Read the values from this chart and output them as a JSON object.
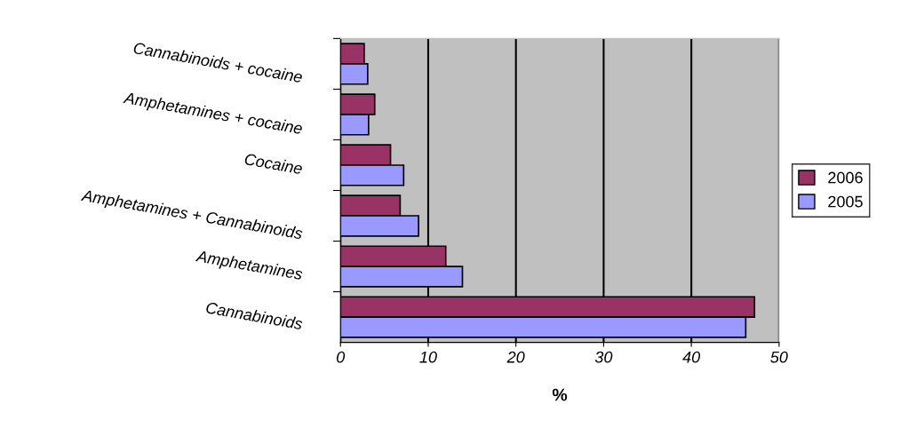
{
  "chart_data": {
    "type": "bar",
    "orientation": "horizontal",
    "xlabel": "%",
    "categories": [
      "Cannabinoids + cocaine",
      "Amphetamines + cocaine",
      "Cocaine",
      "Amphetamines + Cannabinoids",
      "Amphetamines",
      "Cannabinoids"
    ],
    "series": [
      {
        "name": "2006",
        "color": "#993366",
        "values": [
          2.7,
          3.9,
          5.7,
          6.8,
          12.0,
          47.2
        ]
      },
      {
        "name": "2005",
        "color": "#9999ff",
        "values": [
          3.1,
          3.2,
          7.2,
          8.9,
          13.9,
          46.2
        ]
      }
    ],
    "xlim": [
      0,
      50
    ],
    "xticks": [
      0,
      10,
      20,
      30,
      40,
      50
    ],
    "grid": "x",
    "legend": "right"
  }
}
